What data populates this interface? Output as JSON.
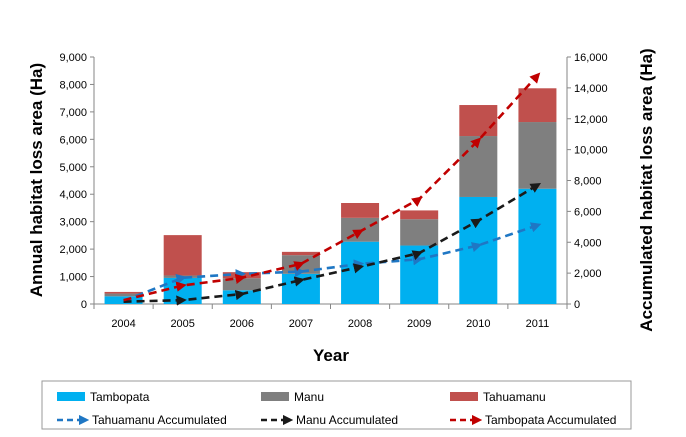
{
  "chart_data": {
    "type": "bar",
    "stacked": true,
    "categories": [
      "2004",
      "2005",
      "2006",
      "2007",
      "2008",
      "2009",
      "2010",
      "2011"
    ],
    "xlabel": "Year",
    "ylabel": "Annual habitat loss area (Ha)",
    "y2label": "Accumulated habitat loss area (Ha)",
    "ylim": [
      0,
      9000
    ],
    "y2lim": [
      0,
      16000
    ],
    "yticks": [
      0,
      1000,
      2000,
      3000,
      4000,
      5000,
      6000,
      7000,
      8000,
      9000
    ],
    "y2ticks": [
      0,
      2000,
      4000,
      6000,
      8000,
      10000,
      12000,
      14000,
      16000
    ],
    "ytick_labels": [
      "0",
      "1,000",
      "2,000",
      "3,000",
      "4,000",
      "5,000",
      "6,000",
      "7,000",
      "8,000",
      "9,000"
    ],
    "y2tick_labels": [
      "0",
      "2,000",
      "4,000",
      "6,000",
      "8,000",
      "10,000",
      "12,000",
      "14,000",
      "16,000"
    ],
    "grid": false,
    "legend_position": "bottom",
    "series": [
      {
        "name": "Tambopata",
        "kind": "bar",
        "axis": "left",
        "color": "#00b0f0",
        "values": [
          280,
          950,
          500,
          1100,
          2270,
          2130,
          3900,
          4200
        ]
      },
      {
        "name": "Manu",
        "kind": "bar",
        "axis": "left",
        "color": "#7f7f7f",
        "values": [
          100,
          90,
          440,
          680,
          870,
          960,
          2220,
          2430
        ]
      },
      {
        "name": "Tahuamanu",
        "kind": "bar",
        "axis": "left",
        "color": "#c0504d",
        "values": [
          60,
          1470,
          220,
          120,
          540,
          320,
          1130,
          1230
        ]
      },
      {
        "name": "Tahuamanu  Accumulated",
        "kind": "line",
        "axis": "right",
        "color": "#1f77c4",
        "dash": "8,5",
        "values": [
          200,
          1700,
          1950,
          2100,
          2600,
          2900,
          3800,
          5100
        ]
      },
      {
        "name": "Manu Accumulated",
        "kind": "line",
        "axis": "right",
        "color": "#1a1a1a",
        "dash": "8,5",
        "values": [
          150,
          250,
          650,
          1550,
          2400,
          3300,
          5400,
          7700
        ]
      },
      {
        "name": "Tambopata Accumulated",
        "kind": "line",
        "axis": "right",
        "color": "#c00000",
        "dash": "8,5",
        "values": [
          250,
          1200,
          1700,
          2600,
          4700,
          6800,
          10600,
          14800
        ]
      }
    ]
  }
}
